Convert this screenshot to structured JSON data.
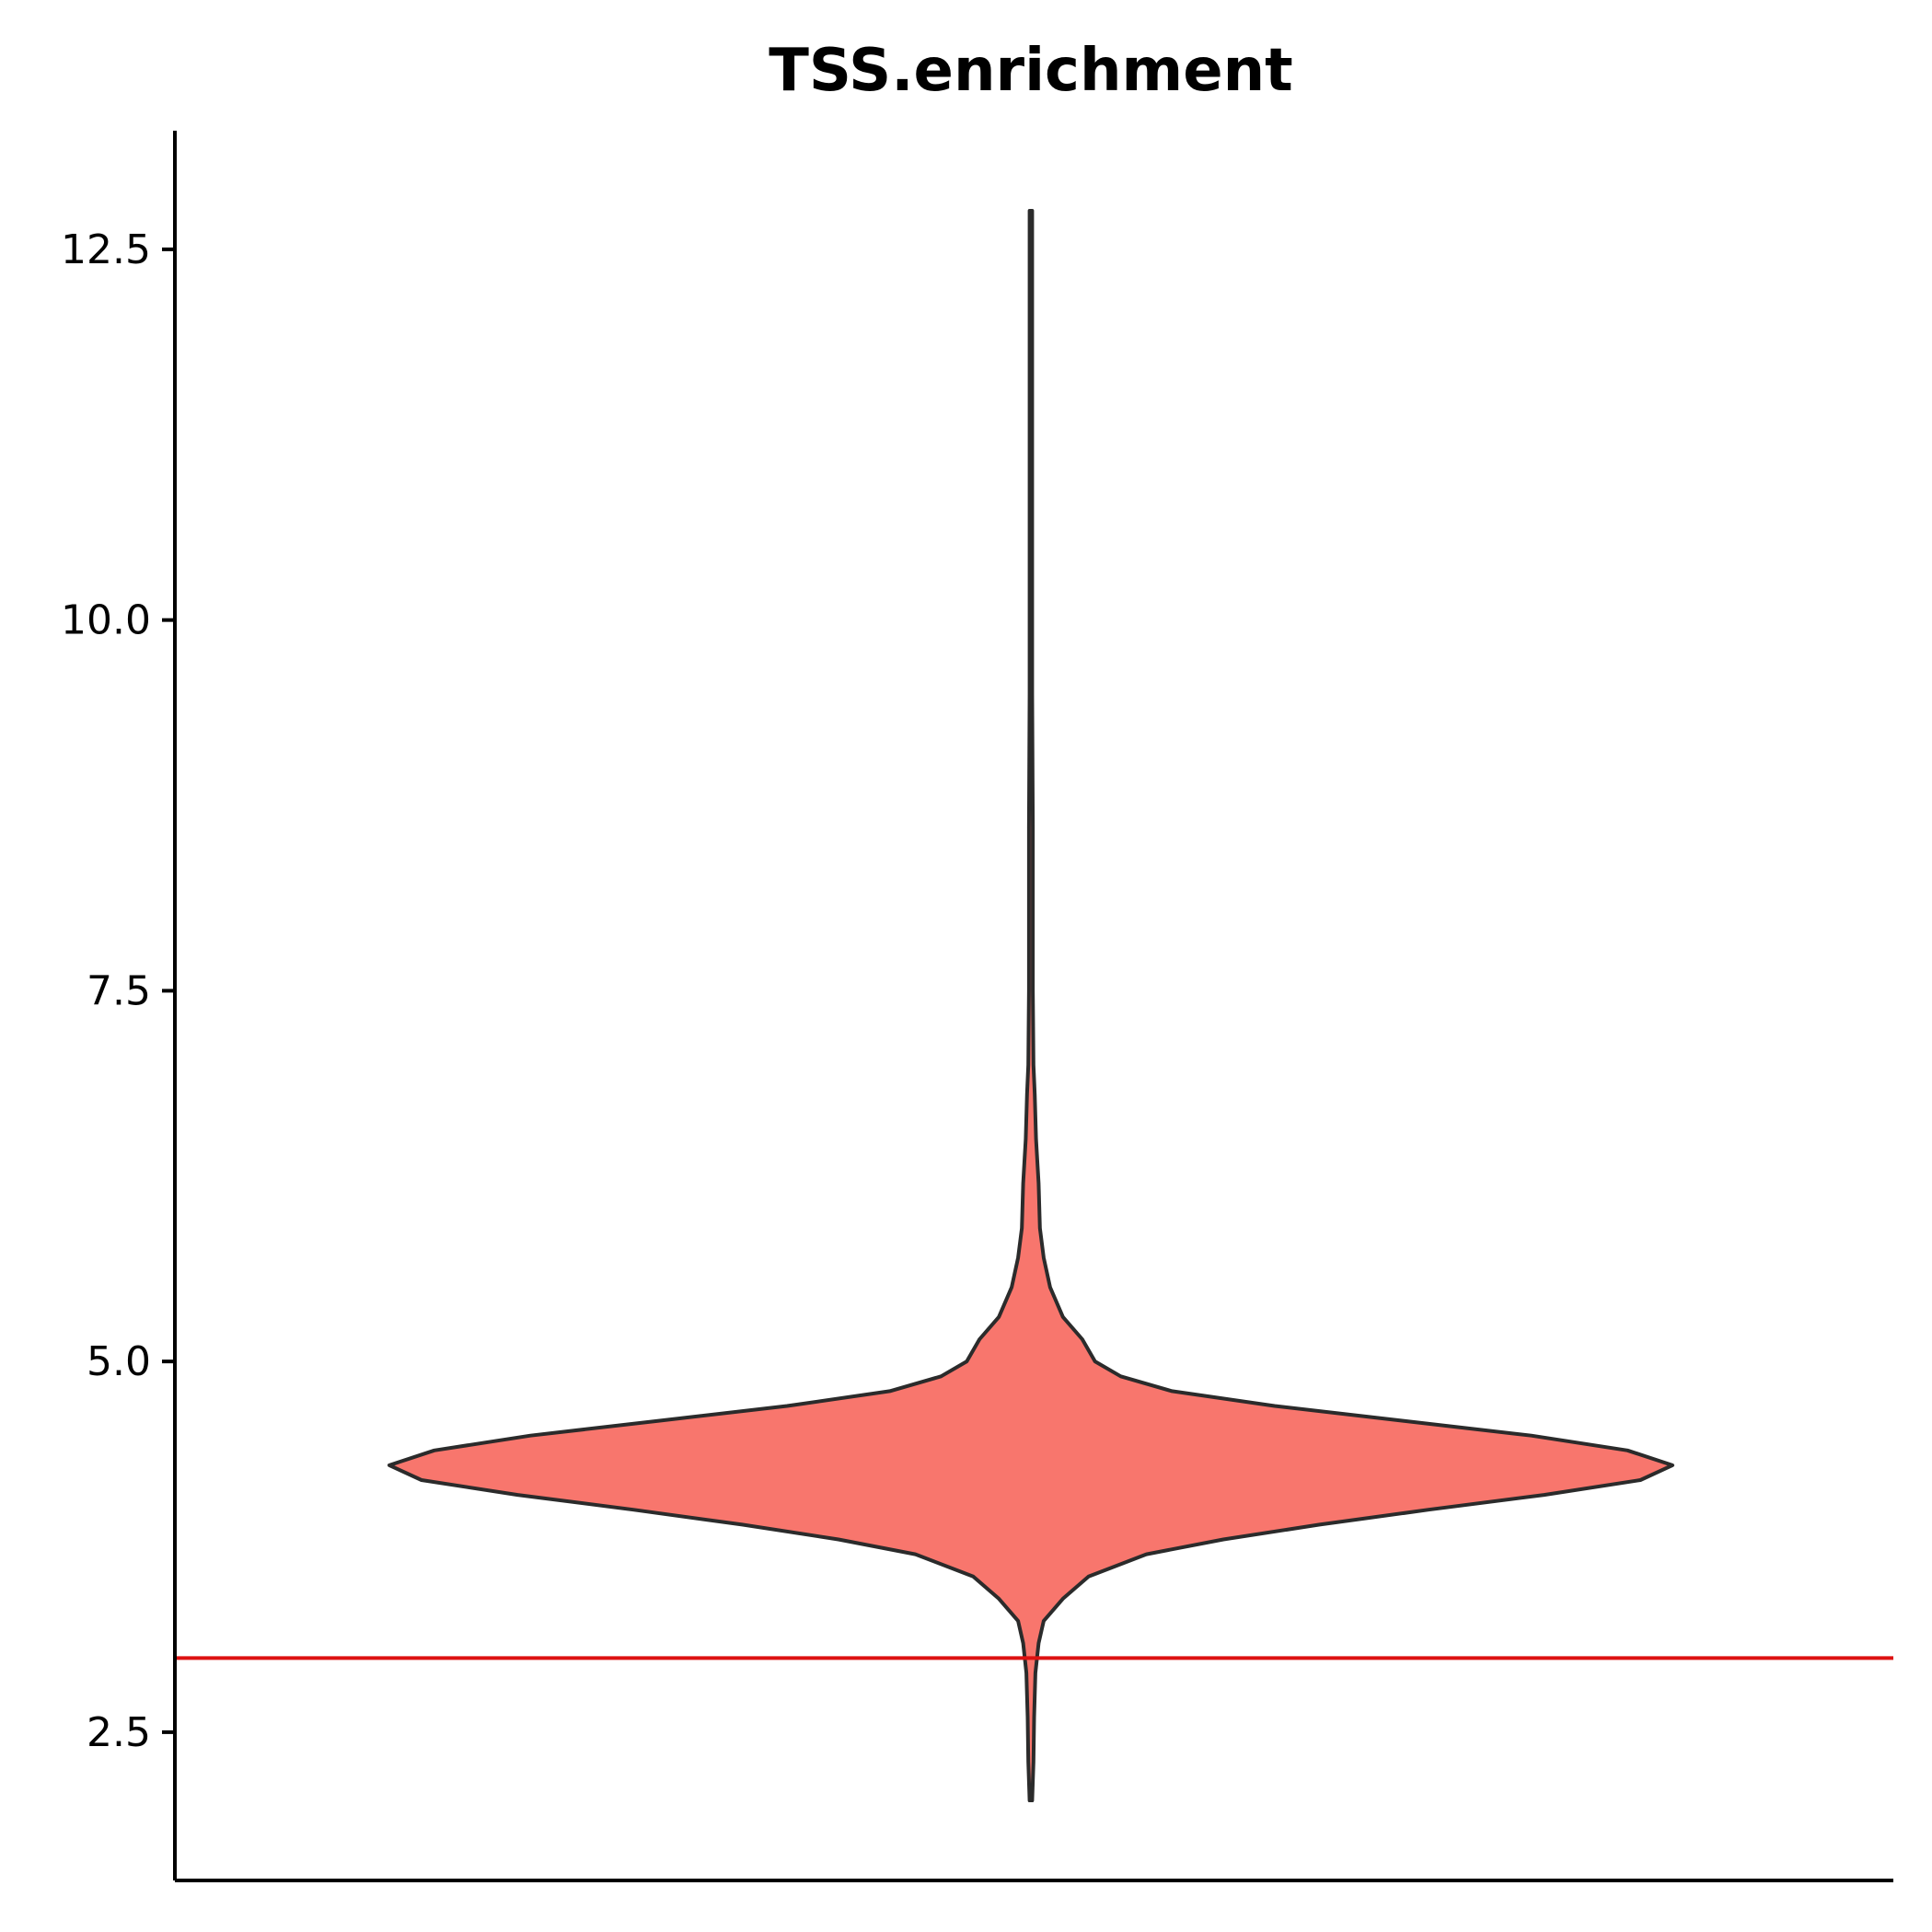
{
  "chart_data": {
    "type": "violin",
    "title": "TSS.enrichment",
    "xlabel": "",
    "ylabel": "",
    "ylim": [
      1.5,
      13.3
    ],
    "yticks": [
      2.5,
      5.0,
      7.5,
      10.0,
      12.5
    ],
    "ytick_labels": [
      "2.5",
      "5.0",
      "7.5",
      "10.0",
      "12.5"
    ],
    "grid": false,
    "legend": "none",
    "series": [
      {
        "min": 2.04,
        "max": 12.76,
        "fill_color": "#F8766D",
        "outline_color": "#2b2b2b",
        "density_profile": [
          [
            2.04,
            0.002
          ],
          [
            2.3,
            0.004
          ],
          [
            2.6,
            0.005
          ],
          [
            2.9,
            0.007
          ],
          [
            3.1,
            0.012
          ],
          [
            3.25,
            0.02
          ],
          [
            3.4,
            0.05
          ],
          [
            3.55,
            0.09
          ],
          [
            3.7,
            0.18
          ],
          [
            3.8,
            0.3
          ],
          [
            3.9,
            0.45
          ],
          [
            4.0,
            0.62
          ],
          [
            4.1,
            0.8
          ],
          [
            4.2,
            0.95
          ],
          [
            4.3,
            1.0
          ],
          [
            4.4,
            0.93
          ],
          [
            4.5,
            0.78
          ],
          [
            4.6,
            0.58
          ],
          [
            4.7,
            0.38
          ],
          [
            4.8,
            0.22
          ],
          [
            4.9,
            0.14
          ],
          [
            5.0,
            0.1
          ],
          [
            5.15,
            0.08
          ],
          [
            5.3,
            0.05
          ],
          [
            5.5,
            0.03
          ],
          [
            5.7,
            0.02
          ],
          [
            5.9,
            0.014
          ],
          [
            6.2,
            0.012
          ],
          [
            6.5,
            0.008
          ],
          [
            6.8,
            0.006
          ],
          [
            7.0,
            0.004
          ],
          [
            7.5,
            0.003
          ],
          [
            8.0,
            0.003
          ],
          [
            8.6,
            0.003
          ],
          [
            9.5,
            0.002
          ],
          [
            10.5,
            0.002
          ],
          [
            11.5,
            0.002
          ],
          [
            12.76,
            0.002
          ]
        ]
      }
    ],
    "reference_line": {
      "y": 3.0,
      "color": "#DD1111"
    }
  }
}
